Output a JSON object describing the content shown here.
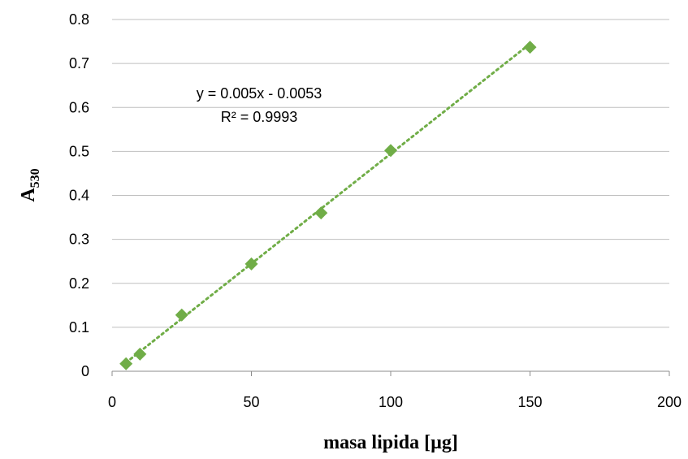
{
  "chart_data": {
    "type": "scatter",
    "xlabel": "masa lipida [µg]",
    "ylabel_main": "A",
    "ylabel_sub": "530",
    "xlim": [
      0,
      200
    ],
    "ylim": [
      0,
      0.8
    ],
    "x_ticks": [
      0,
      50,
      100,
      150,
      200
    ],
    "y_ticks": [
      0,
      0.1,
      0.2,
      0.3,
      0.4,
      0.5,
      0.6,
      0.7,
      0.8
    ],
    "x_tick_labels": [
      "0",
      "50",
      "100",
      "150",
      "200"
    ],
    "y_tick_labels": [
      "0",
      "0.1",
      "0.2",
      "0.3",
      "0.4",
      "0.5",
      "0.6",
      "0.7",
      "0.8"
    ],
    "grid": "horizontal",
    "series": [
      {
        "marker": "diamond",
        "color": "#70ad47",
        "points": [
          {
            "x": 5,
            "y": 0.017
          },
          {
            "x": 10,
            "y": 0.039
          },
          {
            "x": 25,
            "y": 0.128
          },
          {
            "x": 50,
            "y": 0.244
          },
          {
            "x": 75,
            "y": 0.36
          },
          {
            "x": 100,
            "y": 0.502
          },
          {
            "x": 150,
            "y": 0.737
          }
        ]
      }
    ],
    "trendline": {
      "style": "dotted",
      "color": "#70ad47",
      "slope": 0.005,
      "intercept": -0.0053,
      "x_range": [
        5,
        150
      ],
      "equation": "y = 0.005x - 0.0053",
      "r_squared": "R² = 0.9993"
    }
  }
}
